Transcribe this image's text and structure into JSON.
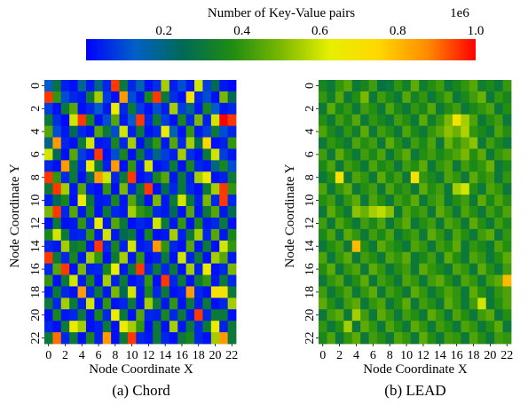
{
  "colorbar": {
    "label": "Number of Key-Value pairs",
    "multiplier": "1e6",
    "ticks": [
      "0.2",
      "0.4",
      "0.6",
      "0.8",
      "1.0"
    ],
    "tick_values": [
      0.2,
      0.4,
      0.6,
      0.8,
      1.0
    ],
    "range": [
      0.0,
      1.0
    ],
    "colormap": [
      "#0000ff",
      "#0060c8",
      "#006a55",
      "#1f8c12",
      "#7ab800",
      "#e6f000",
      "#ffd800",
      "#ff8c00",
      "#ff0000"
    ]
  },
  "chart_data": [
    {
      "type": "heatmap",
      "caption": "(a)  Chord",
      "xlabel": "Node Coordinate X",
      "ylabel": "Node Coordinate Y",
      "x_ticks": [
        "0",
        "2",
        "4",
        "6",
        "8",
        "10",
        "12",
        "14",
        "16",
        "18",
        "20",
        "22"
      ],
      "y_ticks": [
        "0",
        "2",
        "4",
        "6",
        "8",
        "10",
        "12",
        "14",
        "16",
        "18",
        "20",
        "22"
      ],
      "rows": [
        [
          0.12,
          0.28,
          0.04,
          0.02,
          0.18,
          0.03,
          0.2,
          0.05,
          0.95,
          0.3,
          0.05,
          0.15,
          0.02,
          0.06,
          0.55,
          0.04,
          0.1,
          0.03,
          0.6,
          0.08,
          0.25,
          0.03,
          0.01
        ],
        [
          0.95,
          0.4,
          0.1,
          0.05,
          0.03,
          0.3,
          0.55,
          0.08,
          0.02,
          0.85,
          0.1,
          0.03,
          0.35,
          0.95,
          0.3,
          0.06,
          0.02,
          0.7,
          0.05,
          0.1,
          0.02,
          0.5,
          0.25
        ],
        [
          0.08,
          0.02,
          0.3,
          0.45,
          0.02,
          0.05,
          0.12,
          0.03,
          0.65,
          0.05,
          0.3,
          0.08,
          0.02,
          0.1,
          0.04,
          0.55,
          0.08,
          0.2,
          0.03,
          0.35,
          0.12,
          0.03,
          0.05
        ],
        [
          0.3,
          0.06,
          0.01,
          0.6,
          0.95,
          0.35,
          0.02,
          0.1,
          0.45,
          0.03,
          0.12,
          0.95,
          0.05,
          0.3,
          0.08,
          0.02,
          0.35,
          0.05,
          0.5,
          0.04,
          0.6,
          1.0,
          0.95
        ],
        [
          0.45,
          0.1,
          0.03,
          0.25,
          0.05,
          0.02,
          0.45,
          0.3,
          0.1,
          0.6,
          0.04,
          0.3,
          0.02,
          0.05,
          0.65,
          0.15,
          0.02,
          0.4,
          0.03,
          0.08,
          0.3,
          0.1,
          0.05
        ],
        [
          0.2,
          0.85,
          0.05,
          0.02,
          0.3,
          0.6,
          0.03,
          0.04,
          0.35,
          0.05,
          0.55,
          0.02,
          0.25,
          0.4,
          0.03,
          0.45,
          0.05,
          0.55,
          0.25,
          0.75,
          0.02,
          0.04,
          0.4
        ],
        [
          0.6,
          0.25,
          0.02,
          0.45,
          0.08,
          0.03,
          0.95,
          0.02,
          0.1,
          0.35,
          0.02,
          0.3,
          0.05,
          0.2,
          0.08,
          0.04,
          0.55,
          0.06,
          0.02,
          0.3,
          0.6,
          0.08,
          0.03
        ],
        [
          0.05,
          0.02,
          0.85,
          0.3,
          0.05,
          0.65,
          0.3,
          0.04,
          0.85,
          0.02,
          0.4,
          0.03,
          0.6,
          0.02,
          0.05,
          0.3,
          0.02,
          0.35,
          0.05,
          0.03,
          0.2,
          0.35,
          0.1
        ],
        [
          0.95,
          0.4,
          0.05,
          0.3,
          0.02,
          0.25,
          0.85,
          0.6,
          0.05,
          0.3,
          0.95,
          0.02,
          0.05,
          0.35,
          0.45,
          0.03,
          0.3,
          0.04,
          0.55,
          0.65,
          0.02,
          0.04,
          0.3
        ],
        [
          0.3,
          0.95,
          0.55,
          0.03,
          0.45,
          0.04,
          0.02,
          0.4,
          0.02,
          0.5,
          0.05,
          0.3,
          0.95,
          0.02,
          0.25,
          0.05,
          0.3,
          0.05,
          0.02,
          0.3,
          0.55,
          0.95,
          0.4
        ],
        [
          0.04,
          0.25,
          0.35,
          0.02,
          0.65,
          0.3,
          0.03,
          0.04,
          0.35,
          0.03,
          0.45,
          0.25,
          0.02,
          0.5,
          0.03,
          0.3,
          0.6,
          0.3,
          0.04,
          0.5,
          0.05,
          0.95,
          0.05
        ],
        [
          0.5,
          0.95,
          0.05,
          0.45,
          0.03,
          0.35,
          0.02,
          0.3,
          0.05,
          0.03,
          0.55,
          0.4,
          0.35,
          0.05,
          0.03,
          0.25,
          0.02,
          0.45,
          0.03,
          0.3,
          0.45,
          0.03,
          0.25
        ],
        [
          0.02,
          0.3,
          0.02,
          0.03,
          0.4,
          0.05,
          0.65,
          0.03,
          0.45,
          0.3,
          0.02,
          0.05,
          0.03,
          0.6,
          0.3,
          0.03,
          0.4,
          0.02,
          0.35,
          0.03,
          0.05,
          0.3,
          0.02
        ],
        [
          0.35,
          0.6,
          0.3,
          0.04,
          0.05,
          0.4,
          0.03,
          0.6,
          0.03,
          0.25,
          0.3,
          0.02,
          0.35,
          0.02,
          0.03,
          0.55,
          0.04,
          0.3,
          0.55,
          0.05,
          0.45,
          0.03,
          0.35
        ],
        [
          0.05,
          0.03,
          0.55,
          0.3,
          0.35,
          0.03,
          0.95,
          0.05,
          0.35,
          0.04,
          0.6,
          0.03,
          0.05,
          0.85,
          0.4,
          0.05,
          0.02,
          0.45,
          0.03,
          0.3,
          0.02,
          0.6,
          0.4
        ],
        [
          0.95,
          0.3,
          0.05,
          0.35,
          0.03,
          0.55,
          0.4,
          0.02,
          0.3,
          0.55,
          0.03,
          0.4,
          0.02,
          0.04,
          0.3,
          0.02,
          0.6,
          0.04,
          0.3,
          0.02,
          0.55,
          0.45,
          0.03
        ],
        [
          0.05,
          0.45,
          0.95,
          0.02,
          0.5,
          0.04,
          0.05,
          0.35,
          0.65,
          0.03,
          0.3,
          0.95,
          0.05,
          0.3,
          0.05,
          0.3,
          0.02,
          0.55,
          0.04,
          0.65,
          0.02,
          0.05,
          0.5
        ],
        [
          0.4,
          0.02,
          0.3,
          0.6,
          0.03,
          0.35,
          0.02,
          0.55,
          0.04,
          0.3,
          0.02,
          0.05,
          0.4,
          0.02,
          0.95,
          0.05,
          0.3,
          0.02,
          0.3,
          0.4,
          0.03,
          0.3,
          0.05
        ],
        [
          0.03,
          0.3,
          0.05,
          0.02,
          0.85,
          0.05,
          0.3,
          0.03,
          0.5,
          0.25,
          0.6,
          0.03,
          0.35,
          0.05,
          0.3,
          0.02,
          0.04,
          0.85,
          0.05,
          0.02,
          0.7,
          0.7,
          0.3
        ],
        [
          0.3,
          0.05,
          0.55,
          0.3,
          0.04,
          0.6,
          0.02,
          0.4,
          0.02,
          0.05,
          0.3,
          0.02,
          0.55,
          0.3,
          0.03,
          0.4,
          0.02,
          0.3,
          0.04,
          0.3,
          0.02,
          0.05,
          0.55
        ],
        [
          0.02,
          0.35,
          0.03,
          0.05,
          0.3,
          0.02,
          0.35,
          0.05,
          0.65,
          0.3,
          0.02,
          0.45,
          0.05,
          0.04,
          0.35,
          0.05,
          0.3,
          0.03,
          0.95,
          0.05,
          0.3,
          0.3,
          0.02
        ],
        [
          0.05,
          0.02,
          0.3,
          0.65,
          0.55,
          0.02,
          0.04,
          0.3,
          0.02,
          0.65,
          0.55,
          0.4,
          0.02,
          0.3,
          0.02,
          0.55,
          0.03,
          0.3,
          0.05,
          0.3,
          0.65,
          0.04,
          0.3
        ],
        [
          0.3,
          0.9,
          0.05,
          0.3,
          0.02,
          0.35,
          0.04,
          0.85,
          0.02,
          0.3,
          0.95,
          0.05,
          0.03,
          0.3,
          0.05,
          0.02,
          0.3,
          0.35,
          0.05,
          0.02,
          0.55,
          0.85,
          0.3
        ]
      ]
    },
    {
      "type": "heatmap",
      "caption": "(b)  LEAD",
      "xlabel": "Node Coordinate X",
      "ylabel": "Node Coordinate Y",
      "x_ticks": [
        "0",
        "2",
        "4",
        "6",
        "8",
        "10",
        "12",
        "14",
        "16",
        "18",
        "20",
        "22"
      ],
      "y_ticks": [
        "0",
        "2",
        "4",
        "6",
        "8",
        "10",
        "12",
        "14",
        "16",
        "18",
        "20",
        "22"
      ],
      "rows": [
        [
          0.35,
          0.3,
          0.4,
          0.45,
          0.3,
          0.35,
          0.42,
          0.28,
          0.3,
          0.4,
          0.33,
          0.46,
          0.32,
          0.38,
          0.42,
          0.3,
          0.35,
          0.4,
          0.45,
          0.32,
          0.36,
          0.3,
          0.41
        ],
        [
          0.4,
          0.32,
          0.45,
          0.3,
          0.38,
          0.5,
          0.3,
          0.42,
          0.36,
          0.3,
          0.45,
          0.34,
          0.4,
          0.3,
          0.38,
          0.44,
          0.3,
          0.36,
          0.42,
          0.48,
          0.3,
          0.4,
          0.35
        ],
        [
          0.3,
          0.46,
          0.35,
          0.4,
          0.3,
          0.42,
          0.38,
          0.3,
          0.44,
          0.36,
          0.3,
          0.4,
          0.35,
          0.45,
          0.3,
          0.38,
          0.42,
          0.3,
          0.36,
          0.4,
          0.44,
          0.3,
          0.38
        ],
        [
          0.38,
          0.3,
          0.42,
          0.36,
          0.45,
          0.3,
          0.4,
          0.35,
          0.3,
          0.42,
          0.38,
          0.3,
          0.46,
          0.32,
          0.4,
          0.5,
          0.7,
          0.55,
          0.44,
          0.3,
          0.38,
          0.42,
          0.3
        ],
        [
          0.44,
          0.36,
          0.3,
          0.4,
          0.32,
          0.46,
          0.3,
          0.42,
          0.38,
          0.3,
          0.44,
          0.36,
          0.3,
          0.4,
          0.45,
          0.52,
          0.48,
          0.56,
          0.4,
          0.36,
          0.3,
          0.44,
          0.38
        ],
        [
          0.3,
          0.4,
          0.36,
          0.3,
          0.44,
          0.38,
          0.42,
          0.3,
          0.46,
          0.38,
          0.3,
          0.42,
          0.36,
          0.44,
          0.3,
          0.48,
          0.4,
          0.46,
          0.52,
          0.3,
          0.42,
          0.36,
          0.3
        ],
        [
          0.42,
          0.3,
          0.46,
          0.38,
          0.3,
          0.42,
          0.36,
          0.44,
          0.3,
          0.4,
          0.46,
          0.3,
          0.38,
          0.42,
          0.36,
          0.4,
          0.44,
          0.5,
          0.38,
          0.46,
          0.3,
          0.4,
          0.44
        ],
        [
          0.36,
          0.44,
          0.3,
          0.42,
          0.38,
          0.3,
          0.44,
          0.36,
          0.4,
          0.3,
          0.42,
          0.38,
          0.46,
          0.3,
          0.4,
          0.44,
          0.3,
          0.42,
          0.36,
          0.4,
          0.48,
          0.3,
          0.36
        ],
        [
          0.3,
          0.38,
          0.7,
          0.3,
          0.44,
          0.4,
          0.3,
          0.46,
          0.36,
          0.42,
          0.3,
          0.7,
          0.4,
          0.36,
          0.3,
          0.44,
          0.4,
          0.3,
          0.46,
          0.38,
          0.42,
          0.3,
          0.4
        ],
        [
          0.44,
          0.3,
          0.4,
          0.46,
          0.3,
          0.38,
          0.42,
          0.3,
          0.44,
          0.36,
          0.4,
          0.3,
          0.46,
          0.38,
          0.42,
          0.3,
          0.55,
          0.6,
          0.38,
          0.3,
          0.44,
          0.4,
          0.3
        ],
        [
          0.38,
          0.42,
          0.3,
          0.4,
          0.46,
          0.3,
          0.44,
          0.38,
          0.3,
          0.42,
          0.38,
          0.46,
          0.3,
          0.4,
          0.44,
          0.3,
          0.38,
          0.42,
          0.3,
          0.46,
          0.36,
          0.44,
          0.38
        ],
        [
          0.3,
          0.46,
          0.38,
          0.3,
          0.52,
          0.48,
          0.55,
          0.58,
          0.52,
          0.3,
          0.44,
          0.38,
          0.42,
          0.3,
          0.46,
          0.4,
          0.3,
          0.44,
          0.38,
          0.3,
          0.42,
          0.36,
          0.44
        ],
        [
          0.42,
          0.3,
          0.44,
          0.38,
          0.3,
          0.42,
          0.36,
          0.44,
          0.3,
          0.4,
          0.46,
          0.3,
          0.38,
          0.42,
          0.3,
          0.44,
          0.4,
          0.3,
          0.46,
          0.38,
          0.3,
          0.42,
          0.36
        ],
        [
          0.36,
          0.44,
          0.3,
          0.46,
          0.4,
          0.3,
          0.42,
          0.36,
          0.44,
          0.3,
          0.38,
          0.42,
          0.3,
          0.46,
          0.4,
          0.3,
          0.44,
          0.38,
          0.3,
          0.42,
          0.46,
          0.3,
          0.4
        ],
        [
          0.3,
          0.38,
          0.42,
          0.3,
          0.8,
          0.38,
          0.3,
          0.46,
          0.4,
          0.36,
          0.3,
          0.44,
          0.4,
          0.3,
          0.42,
          0.38,
          0.46,
          0.3,
          0.4,
          0.36,
          0.3,
          0.44,
          0.38
        ],
        [
          0.44,
          0.3,
          0.4,
          0.46,
          0.3,
          0.42,
          0.38,
          0.3,
          0.44,
          0.4,
          0.46,
          0.3,
          0.36,
          0.42,
          0.3,
          0.46,
          0.38,
          0.3,
          0.44,
          0.4,
          0.3,
          0.38,
          0.46
        ],
        [
          0.38,
          0.46,
          0.3,
          0.4,
          0.44,
          0.3,
          0.46,
          0.4,
          0.3,
          0.38,
          0.42,
          0.3,
          0.46,
          0.4,
          0.36,
          0.3,
          0.44,
          0.4,
          0.3,
          0.46,
          0.38,
          0.3,
          0.42
        ],
        [
          0.3,
          0.4,
          0.44,
          0.3,
          0.38,
          0.46,
          0.3,
          0.42,
          0.38,
          0.3,
          0.44,
          0.4,
          0.3,
          0.42,
          0.46,
          0.38,
          0.3,
          0.44,
          0.4,
          0.3,
          0.42,
          0.46,
          0.8
        ],
        [
          0.42,
          0.3,
          0.38,
          0.44,
          0.3,
          0.4,
          0.46,
          0.3,
          0.42,
          0.38,
          0.3,
          0.46,
          0.4,
          0.3,
          0.38,
          0.44,
          0.4,
          0.3,
          0.46,
          0.38,
          0.3,
          0.4,
          0.44
        ],
        [
          0.46,
          0.38,
          0.3,
          0.42,
          0.46,
          0.3,
          0.4,
          0.44,
          0.3,
          0.38,
          0.46,
          0.3,
          0.42,
          0.38,
          0.3,
          0.46,
          0.4,
          0.3,
          0.42,
          0.6,
          0.3,
          0.38,
          0.44
        ],
        [
          0.3,
          0.42,
          0.46,
          0.3,
          0.55,
          0.42,
          0.3,
          0.46,
          0.4,
          0.3,
          0.42,
          0.38,
          0.3,
          0.46,
          0.4,
          0.3,
          0.44,
          0.38,
          0.3,
          0.42,
          0.46,
          0.3,
          0.38
        ],
        [
          0.4,
          0.3,
          0.38,
          0.55,
          0.3,
          0.46,
          0.4,
          0.3,
          0.44,
          0.38,
          0.3,
          0.46,
          0.4,
          0.3,
          0.42,
          0.38,
          0.3,
          0.44,
          0.4,
          0.3,
          0.38,
          0.46,
          0.3
        ],
        [
          0.36,
          0.44,
          0.3,
          0.4,
          0.46,
          0.3,
          0.42,
          0.38,
          0.3,
          0.44,
          0.4,
          0.3,
          0.46,
          0.38,
          0.3,
          0.42,
          0.4,
          0.3,
          0.44,
          0.38,
          0.3,
          0.42,
          0.4
        ]
      ]
    }
  ]
}
